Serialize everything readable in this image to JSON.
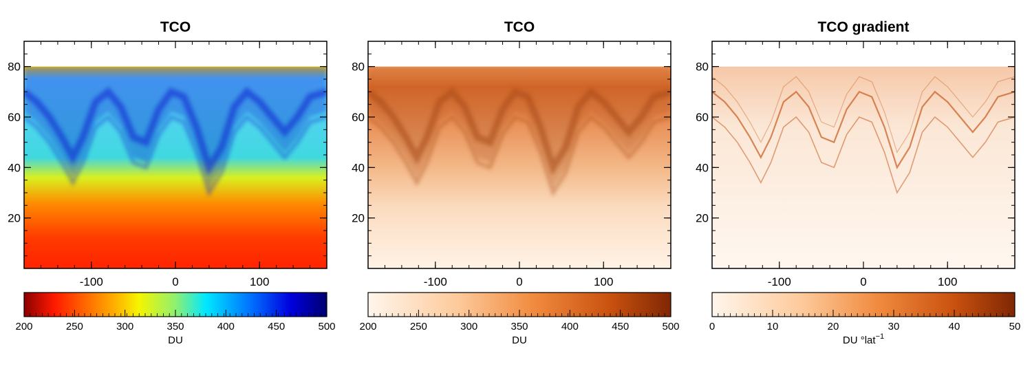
{
  "chart_data": [
    {
      "type": "heatmap",
      "title": "TCO",
      "colormap": "jet_reversed",
      "x_ticks": [
        -100,
        0,
        100
      ],
      "y_ticks": [
        20,
        40,
        60,
        80
      ],
      "xlim": [
        -180,
        180
      ],
      "ylim": [
        0,
        90
      ],
      "colorbar": {
        "ticks": [
          200,
          250,
          300,
          350,
          400,
          450,
          500
        ],
        "label": "DU",
        "range": [
          200,
          500
        ]
      }
    },
    {
      "type": "heatmap",
      "title": "TCO",
      "colormap": "oranges",
      "x_ticks": [
        -100,
        0,
        100
      ],
      "y_ticks": [
        20,
        40,
        60,
        80
      ],
      "xlim": [
        -180,
        180
      ],
      "ylim": [
        0,
        90
      ],
      "colorbar": {
        "ticks": [
          200,
          250,
          300,
          350,
          400,
          450,
          500
        ],
        "label": "DU",
        "range": [
          200,
          500
        ]
      }
    },
    {
      "type": "heatmap",
      "title": "TCO gradient",
      "colormap": "oranges",
      "x_ticks": [
        -100,
        0,
        100
      ],
      "y_ticks": [
        20,
        40,
        60,
        80
      ],
      "xlim": [
        -180,
        180
      ],
      "ylim": [
        0,
        90
      ],
      "colorbar": {
        "ticks": [
          0,
          10,
          20,
          30,
          40,
          50
        ],
        "label": "DU °lat",
        "label_exponent": "−1",
        "range": [
          0,
          50
        ]
      }
    }
  ]
}
